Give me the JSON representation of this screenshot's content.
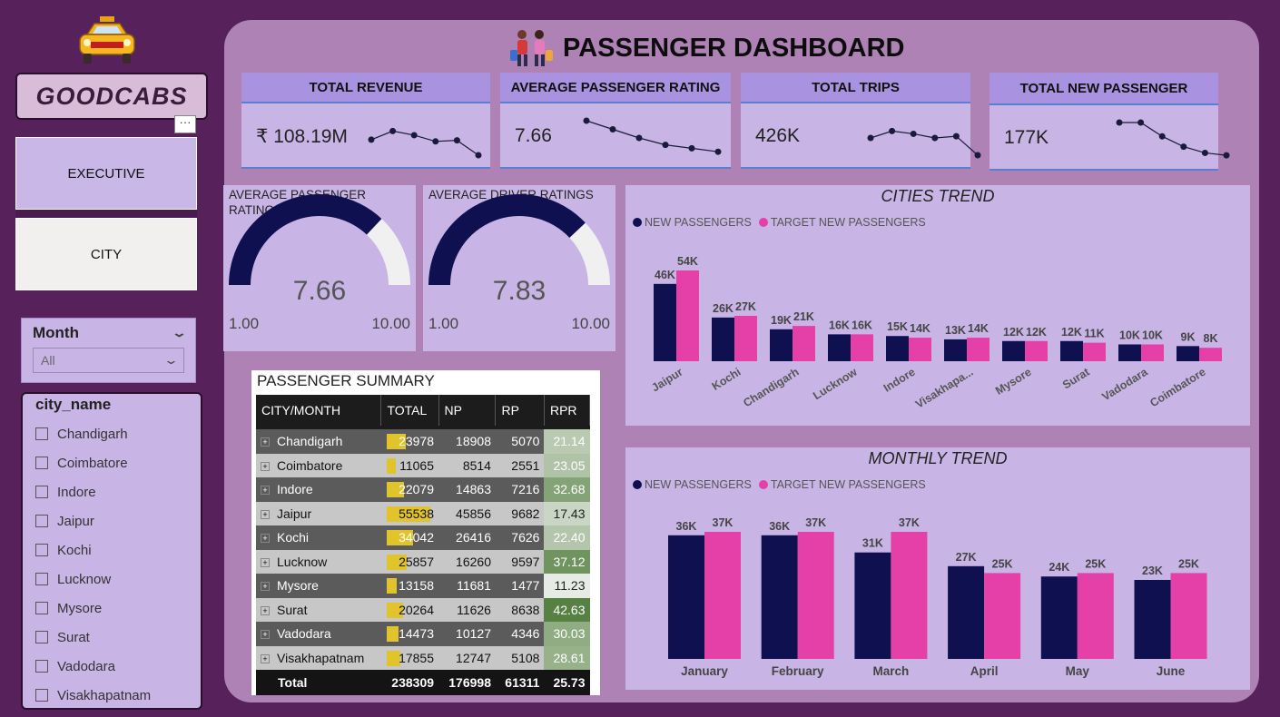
{
  "brand": {
    "name": "GOODCABS",
    "more": "···"
  },
  "nav": {
    "executive": "EXECUTIVE",
    "city": "CITY"
  },
  "month_slicer": {
    "label": "Month",
    "selected": "All"
  },
  "city_slicer": {
    "label": "city_name",
    "items": [
      "Chandigarh",
      "Coimbatore",
      "Indore",
      "Jaipur",
      "Kochi",
      "Lucknow",
      "Mysore",
      "Surat",
      "Vadodara",
      "Visakhapatnam"
    ]
  },
  "title": "PASSENGER DASHBOARD",
  "kpis": [
    {
      "label": "TOTAL REVENUE",
      "value": "₹ 108.19M",
      "trend": [
        0.55,
        0.3,
        0.42,
        0.6,
        0.57,
        1.0
      ]
    },
    {
      "label": "AVERAGE PASSENGER RATING",
      "value": "7.66",
      "trend": [
        0.0,
        0.25,
        0.5,
        0.7,
        0.8,
        0.9
      ]
    },
    {
      "label": "TOTAL TRIPS",
      "value": "426K",
      "trend": [
        0.5,
        0.3,
        0.38,
        0.5,
        0.45,
        1.0
      ]
    },
    {
      "label": "TOTAL NEW PASSENGER",
      "value": "177K",
      "trend": [
        0.0,
        0.0,
        0.4,
        0.7,
        0.88,
        0.95
      ]
    }
  ],
  "gauges": [
    {
      "title": "AVERAGE PASSENGER RATINGS",
      "value": 7.66,
      "value_label": "7.66",
      "min": "1.00",
      "max": "10.00",
      "fraction": 0.74
    },
    {
      "title": "AVERAGE DRIVER RATINGS",
      "value": 7.83,
      "value_label": "7.83",
      "min": "1.00",
      "max": "10.00",
      "fraction": 0.76
    }
  ],
  "colors": {
    "new": "#0e104f",
    "target": "#e53fa8",
    "accent": "#a993e1"
  },
  "chart_data": [
    {
      "type": "bar",
      "title": "CITIES TREND",
      "legend": [
        "NEW PASSENGERS",
        "TARGET NEW PASSENGERS"
      ],
      "categories": [
        "Jaipur",
        "Kochi",
        "Chandigarh",
        "Lucknow",
        "Indore",
        "Visakhapa...",
        "Mysore",
        "Surat",
        "Vadodara",
        "Coimbatore"
      ],
      "series": [
        {
          "name": "NEW PASSENGERS",
          "values": [
            46,
            26,
            19,
            16,
            15,
            13,
            12,
            12,
            10,
            9
          ],
          "labels": [
            "46K",
            "26K",
            "19K",
            "16K",
            "15K",
            "13K",
            "12K",
            "12K",
            "10K",
            "9K"
          ]
        },
        {
          "name": "TARGET NEW PASSENGERS",
          "values": [
            54,
            27,
            21,
            16,
            14,
            14,
            12,
            11,
            10,
            8
          ],
          "labels": [
            "54K",
            "27K",
            "21K",
            "16K",
            "14K",
            "14K",
            "12K",
            "11K",
            "10K",
            "8K"
          ]
        }
      ]
    },
    {
      "type": "bar",
      "title": "MONTHLY TREND",
      "legend": [
        "NEW PASSENGERS",
        "TARGET NEW PASSENGERS"
      ],
      "categories": [
        "January",
        "February",
        "March",
        "April",
        "May",
        "June"
      ],
      "series": [
        {
          "name": "NEW PASSENGERS",
          "values": [
            36,
            36,
            31,
            27,
            24,
            23
          ],
          "labels": [
            "36K",
            "36K",
            "31K",
            "27K",
            "24K",
            "23K"
          ]
        },
        {
          "name": "TARGET NEW PASSENGERS",
          "values": [
            37,
            37,
            37,
            25,
            25,
            25
          ],
          "labels": [
            "37K",
            "37K",
            "37K",
            "25K",
            "25K",
            "25K"
          ]
        }
      ]
    }
  ],
  "summary": {
    "title": "PASSENGER SUMMARY",
    "columns": [
      "CITY/MONTH",
      "TOTAL",
      "NP",
      "RP",
      "RPR"
    ],
    "rows": [
      {
        "city": "Chandigarh",
        "total": "23978",
        "np": "18908",
        "rp": "5070",
        "rpr": "21.14",
        "total_value": 23978,
        "rpr_value": 21.14
      },
      {
        "city": "Coimbatore",
        "total": "11065",
        "np": "8514",
        "rp": "2551",
        "rpr": "23.05",
        "total_value": 11065,
        "rpr_value": 23.05
      },
      {
        "city": "Indore",
        "total": "22079",
        "np": "14863",
        "rp": "7216",
        "rpr": "32.68",
        "total_value": 22079,
        "rpr_value": 32.68
      },
      {
        "city": "Jaipur",
        "total": "55538",
        "np": "45856",
        "rp": "9682",
        "rpr": "17.43",
        "total_value": 55538,
        "rpr_value": 17.43
      },
      {
        "city": "Kochi",
        "total": "34042",
        "np": "26416",
        "rp": "7626",
        "rpr": "22.40",
        "total_value": 34042,
        "rpr_value": 22.4
      },
      {
        "city": "Lucknow",
        "total": "25857",
        "np": "16260",
        "rp": "9597",
        "rpr": "37.12",
        "total_value": 25857,
        "rpr_value": 37.12
      },
      {
        "city": "Mysore",
        "total": "13158",
        "np": "11681",
        "rp": "1477",
        "rpr": "11.23",
        "total_value": 13158,
        "rpr_value": 11.23
      },
      {
        "city": "Surat",
        "total": "20264",
        "np": "11626",
        "rp": "8638",
        "rpr": "42.63",
        "total_value": 20264,
        "rpr_value": 42.63
      },
      {
        "city": "Vadodara",
        "total": "14473",
        "np": "10127",
        "rp": "4346",
        "rpr": "30.03",
        "total_value": 14473,
        "rpr_value": 30.03
      },
      {
        "city": "Visakhapatnam",
        "total": "17855",
        "np": "12747",
        "rp": "5108",
        "rpr": "28.61",
        "total_value": 17855,
        "rpr_value": 28.61
      }
    ],
    "total": {
      "label": "Total",
      "total": "238309",
      "np": "176998",
      "rp": "61311",
      "rpr": "25.73"
    }
  }
}
